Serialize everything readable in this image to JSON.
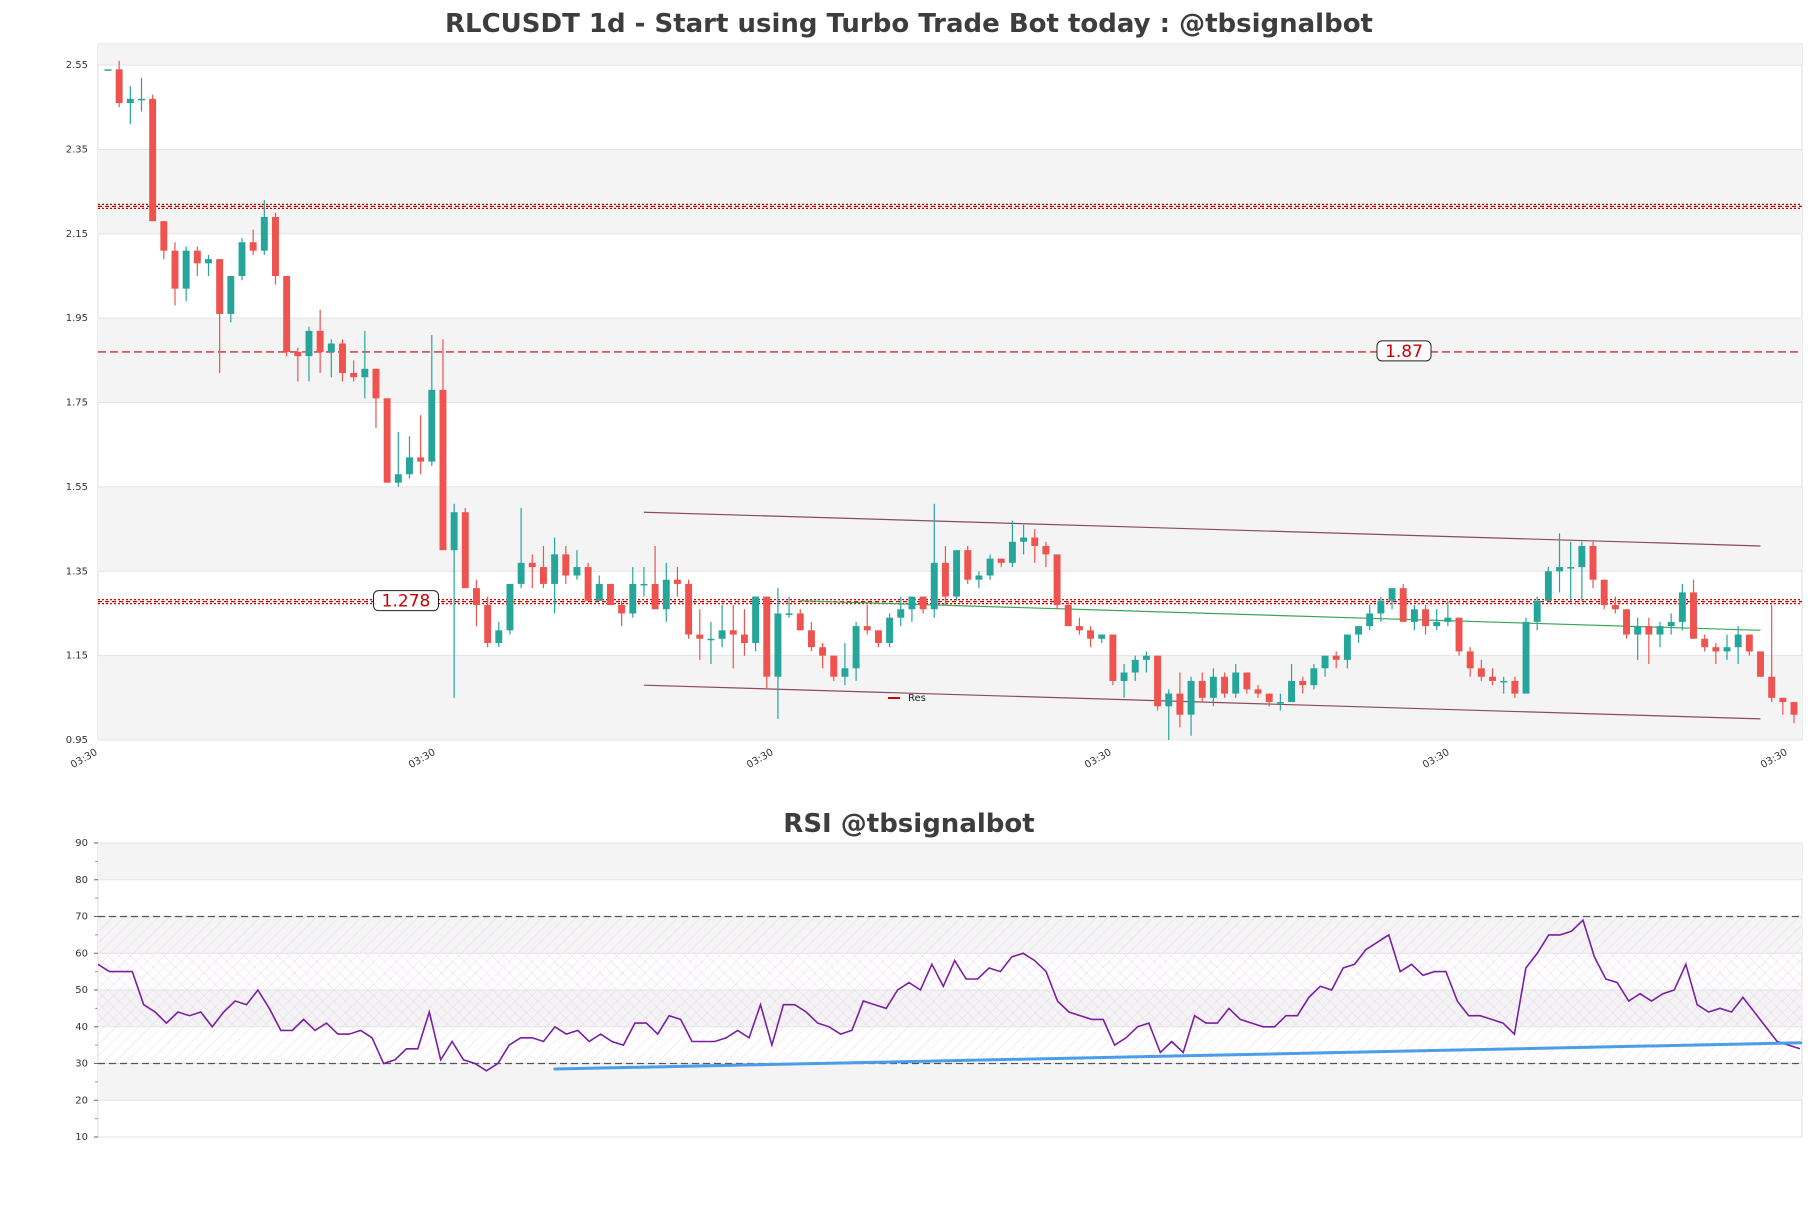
{
  "chart_data": [
    {
      "type": "candlestick",
      "title": "RLCUSDT 1d - Start using Turbo Trade Bot today : @tbsignalbot",
      "ylim": [
        0.95,
        2.6
      ],
      "yticks": [
        "0.95",
        "1.15",
        "1.35",
        "1.55",
        "1.75",
        "1.95",
        "2.15",
        "2.35",
        "2.55"
      ],
      "xtick_labels": [
        "03:30",
        "03:30",
        "03:30",
        "03:30",
        "03:30",
        "03:30"
      ],
      "grid": true,
      "legend": {
        "placement": "bottom-center",
        "entries": [
          "Res"
        ]
      },
      "levels": [
        {
          "value": 2.215,
          "style": "dotted-band",
          "label": ""
        },
        {
          "value": 1.87,
          "style": "dashed",
          "label": "1.87"
        },
        {
          "value": 1.278,
          "style": "dotted-band",
          "label": "1.278"
        }
      ],
      "channel_upper": {
        "from": [
          48,
          1.49
        ],
        "to": [
          148,
          1.41
        ]
      },
      "channel_lower": {
        "from": [
          48,
          1.08
        ],
        "to": [
          148,
          1.0
        ]
      },
      "trend_mid": {
        "from": [
          62,
          1.28
        ],
        "to": [
          148,
          1.21
        ]
      },
      "colors": {
        "up": "#26a69a",
        "down": "#ef5350",
        "level": "#cc0000",
        "channel": "#8b4a5e",
        "mid": "#3aa655"
      },
      "ohlc": [
        [
          2.54,
          2.54,
          2.54,
          2.54
        ],
        [
          2.54,
          2.56,
          2.45,
          2.46
        ],
        [
          2.46,
          2.5,
          2.41,
          2.47
        ],
        [
          2.47,
          2.52,
          2.44,
          2.47
        ],
        [
          2.47,
          2.48,
          2.18,
          2.18
        ],
        [
          2.18,
          2.18,
          2.09,
          2.11
        ],
        [
          2.11,
          2.13,
          1.98,
          2.02
        ],
        [
          2.02,
          2.12,
          1.99,
          2.11
        ],
        [
          2.11,
          2.12,
          2.05,
          2.08
        ],
        [
          2.08,
          2.1,
          2.05,
          2.09
        ],
        [
          2.09,
          2.09,
          1.82,
          1.96
        ],
        [
          1.96,
          2.05,
          1.94,
          2.05
        ],
        [
          2.05,
          2.14,
          2.04,
          2.13
        ],
        [
          2.13,
          2.16,
          2.1,
          2.11
        ],
        [
          2.11,
          2.23,
          2.1,
          2.19
        ],
        [
          2.19,
          2.2,
          2.03,
          2.05
        ],
        [
          2.05,
          2.05,
          1.86,
          1.87
        ],
        [
          1.87,
          1.88,
          1.8,
          1.86
        ],
        [
          1.86,
          1.93,
          1.8,
          1.92
        ],
        [
          1.92,
          1.97,
          1.82,
          1.87
        ],
        [
          1.87,
          1.9,
          1.81,
          1.89
        ],
        [
          1.89,
          1.9,
          1.8,
          1.82
        ],
        [
          1.82,
          1.85,
          1.8,
          1.81
        ],
        [
          1.81,
          1.92,
          1.76,
          1.83
        ],
        [
          1.83,
          1.83,
          1.69,
          1.76
        ],
        [
          1.76,
          1.76,
          1.56,
          1.56
        ],
        [
          1.56,
          1.68,
          1.55,
          1.58
        ],
        [
          1.58,
          1.67,
          1.57,
          1.62
        ],
        [
          1.62,
          1.72,
          1.58,
          1.61
        ],
        [
          1.61,
          1.91,
          1.6,
          1.78
        ],
        [
          1.78,
          1.9,
          1.4,
          1.4
        ],
        [
          1.4,
          1.51,
          1.05,
          1.49
        ],
        [
          1.49,
          1.5,
          1.31,
          1.31
        ],
        [
          1.31,
          1.33,
          1.22,
          1.27
        ],
        [
          1.27,
          1.29,
          1.17,
          1.18
        ],
        [
          1.18,
          1.23,
          1.17,
          1.21
        ],
        [
          1.21,
          1.32,
          1.2,
          1.32
        ],
        [
          1.32,
          1.5,
          1.31,
          1.37
        ],
        [
          1.37,
          1.39,
          1.31,
          1.36
        ],
        [
          1.36,
          1.41,
          1.31,
          1.32
        ],
        [
          1.32,
          1.43,
          1.25,
          1.39
        ],
        [
          1.39,
          1.41,
          1.32,
          1.34
        ],
        [
          1.34,
          1.4,
          1.33,
          1.36
        ],
        [
          1.36,
          1.37,
          1.28,
          1.28
        ],
        [
          1.28,
          1.34,
          1.28,
          1.32
        ],
        [
          1.32,
          1.32,
          1.27,
          1.27
        ],
        [
          1.27,
          1.28,
          1.22,
          1.25
        ],
        [
          1.25,
          1.36,
          1.24,
          1.32
        ],
        [
          1.32,
          1.36,
          1.29,
          1.32
        ],
        [
          1.32,
          1.41,
          1.26,
          1.26
        ],
        [
          1.26,
          1.37,
          1.23,
          1.33
        ],
        [
          1.33,
          1.36,
          1.29,
          1.32
        ],
        [
          1.32,
          1.33,
          1.19,
          1.2
        ],
        [
          1.2,
          1.26,
          1.14,
          1.19
        ],
        [
          1.19,
          1.23,
          1.13,
          1.19
        ],
        [
          1.19,
          1.27,
          1.17,
          1.21
        ],
        [
          1.21,
          1.27,
          1.12,
          1.2
        ],
        [
          1.2,
          1.26,
          1.15,
          1.18
        ],
        [
          1.18,
          1.29,
          1.16,
          1.29
        ],
        [
          1.29,
          1.29,
          1.07,
          1.1
        ],
        [
          1.1,
          1.31,
          1.0,
          1.25
        ],
        [
          1.25,
          1.29,
          1.24,
          1.25
        ],
        [
          1.25,
          1.26,
          1.21,
          1.21
        ],
        [
          1.21,
          1.23,
          1.16,
          1.17
        ],
        [
          1.17,
          1.18,
          1.12,
          1.15
        ],
        [
          1.15,
          1.15,
          1.09,
          1.1
        ],
        [
          1.1,
          1.18,
          1.08,
          1.12
        ],
        [
          1.12,
          1.23,
          1.09,
          1.22
        ],
        [
          1.22,
          1.27,
          1.2,
          1.21
        ],
        [
          1.21,
          1.21,
          1.17,
          1.18
        ],
        [
          1.18,
          1.25,
          1.17,
          1.24
        ],
        [
          1.24,
          1.29,
          1.22,
          1.26
        ],
        [
          1.26,
          1.29,
          1.23,
          1.29
        ],
        [
          1.29,
          1.29,
          1.25,
          1.26
        ],
        [
          1.26,
          1.51,
          1.24,
          1.37
        ],
        [
          1.37,
          1.41,
          1.27,
          1.29
        ],
        [
          1.29,
          1.4,
          1.28,
          1.4
        ],
        [
          1.4,
          1.41,
          1.32,
          1.33
        ],
        [
          1.33,
          1.35,
          1.31,
          1.34
        ],
        [
          1.34,
          1.39,
          1.33,
          1.38
        ],
        [
          1.38,
          1.38,
          1.36,
          1.37
        ],
        [
          1.37,
          1.47,
          1.36,
          1.42
        ],
        [
          1.42,
          1.46,
          1.39,
          1.43
        ],
        [
          1.43,
          1.45,
          1.37,
          1.41
        ],
        [
          1.41,
          1.42,
          1.36,
          1.39
        ],
        [
          1.39,
          1.39,
          1.26,
          1.27
        ],
        [
          1.27,
          1.28,
          1.23,
          1.22
        ],
        [
          1.22,
          1.24,
          1.2,
          1.21
        ],
        [
          1.21,
          1.22,
          1.17,
          1.19
        ],
        [
          1.19,
          1.2,
          1.18,
          1.2
        ],
        [
          1.2,
          1.2,
          1.08,
          1.09
        ],
        [
          1.09,
          1.13,
          1.05,
          1.11
        ],
        [
          1.11,
          1.15,
          1.09,
          1.14
        ],
        [
          1.14,
          1.16,
          1.11,
          1.15
        ],
        [
          1.15,
          1.15,
          1.02,
          1.03
        ],
        [
          1.03,
          1.07,
          0.95,
          1.06
        ],
        [
          1.06,
          1.11,
          0.98,
          1.01
        ],
        [
          1.01,
          1.1,
          0.96,
          1.09
        ],
        [
          1.09,
          1.11,
          1.04,
          1.05
        ],
        [
          1.05,
          1.12,
          1.03,
          1.1
        ],
        [
          1.1,
          1.11,
          1.05,
          1.06
        ],
        [
          1.06,
          1.13,
          1.05,
          1.11
        ],
        [
          1.11,
          1.11,
          1.06,
          1.07
        ],
        [
          1.07,
          1.08,
          1.05,
          1.06
        ],
        [
          1.06,
          1.06,
          1.03,
          1.04
        ],
        [
          1.04,
          1.06,
          1.02,
          1.04
        ],
        [
          1.04,
          1.13,
          1.04,
          1.09
        ],
        [
          1.09,
          1.1,
          1.06,
          1.08
        ],
        [
          1.08,
          1.13,
          1.07,
          1.12
        ],
        [
          1.12,
          1.15,
          1.1,
          1.15
        ],
        [
          1.15,
          1.16,
          1.12,
          1.14
        ],
        [
          1.14,
          1.2,
          1.12,
          1.2
        ],
        [
          1.2,
          1.22,
          1.18,
          1.22
        ],
        [
          1.22,
          1.27,
          1.21,
          1.25
        ],
        [
          1.25,
          1.29,
          1.23,
          1.28
        ],
        [
          1.28,
          1.31,
          1.26,
          1.31
        ],
        [
          1.31,
          1.32,
          1.23,
          1.23
        ],
        [
          1.23,
          1.27,
          1.21,
          1.26
        ],
        [
          1.26,
          1.27,
          1.2,
          1.22
        ],
        [
          1.22,
          1.26,
          1.21,
          1.23
        ],
        [
          1.23,
          1.28,
          1.22,
          1.24
        ],
        [
          1.24,
          1.24,
          1.15,
          1.16
        ],
        [
          1.16,
          1.17,
          1.1,
          1.12
        ],
        [
          1.12,
          1.14,
          1.09,
          1.1
        ],
        [
          1.1,
          1.12,
          1.08,
          1.09
        ],
        [
          1.09,
          1.1,
          1.06,
          1.09
        ],
        [
          1.09,
          1.1,
          1.05,
          1.06
        ],
        [
          1.06,
          1.24,
          1.06,
          1.23
        ],
        [
          1.23,
          1.29,
          1.21,
          1.28
        ],
        [
          1.28,
          1.36,
          1.28,
          1.35
        ],
        [
          1.35,
          1.44,
          1.3,
          1.36
        ],
        [
          1.36,
          1.42,
          1.28,
          1.36
        ],
        [
          1.36,
          1.42,
          1.28,
          1.41
        ],
        [
          1.41,
          1.42,
          1.31,
          1.33
        ],
        [
          1.33,
          1.33,
          1.26,
          1.27
        ],
        [
          1.27,
          1.29,
          1.25,
          1.26
        ],
        [
          1.26,
          1.26,
          1.19,
          1.2
        ],
        [
          1.2,
          1.24,
          1.14,
          1.22
        ],
        [
          1.22,
          1.24,
          1.13,
          1.2
        ],
        [
          1.2,
          1.23,
          1.17,
          1.22
        ],
        [
          1.22,
          1.25,
          1.2,
          1.23
        ],
        [
          1.23,
          1.32,
          1.21,
          1.3
        ],
        [
          1.3,
          1.33,
          1.19,
          1.19
        ],
        [
          1.19,
          1.2,
          1.16,
          1.17
        ],
        [
          1.17,
          1.18,
          1.13,
          1.16
        ],
        [
          1.16,
          1.2,
          1.14,
          1.17
        ],
        [
          1.17,
          1.22,
          1.13,
          1.2
        ],
        [
          1.2,
          1.2,
          1.15,
          1.16
        ],
        [
          1.16,
          1.16,
          1.1,
          1.1
        ],
        [
          1.1,
          1.27,
          1.04,
          1.05
        ],
        [
          1.05,
          1.05,
          1.01,
          1.04
        ],
        [
          1.04,
          1.04,
          0.99,
          1.01
        ]
      ]
    },
    {
      "type": "line",
      "title": "RSI @tbsignalbot",
      "ylim": [
        10,
        90
      ],
      "yticks": [
        "10",
        "20",
        "30",
        "40",
        "50",
        "60",
        "70",
        "80",
        "90"
      ],
      "grid": true,
      "hlines": [
        30,
        70
      ],
      "bands": [
        [
          30,
          70
        ],
        [
          40,
          60
        ]
      ],
      "trendline": {
        "from": [
          40,
          28.5
        ],
        "to": [
          170,
          37
        ]
      },
      "colors": {
        "rsi": "#7b1fa2",
        "trend": "#4a9de8",
        "hline": "#555555"
      },
      "values": [
        57,
        55,
        55,
        55,
        46,
        44,
        41,
        44,
        43,
        44,
        40,
        44,
        47,
        46,
        50,
        45,
        39,
        39,
        42,
        39,
        41,
        38,
        38,
        39,
        37,
        30,
        31,
        34,
        34,
        44,
        31,
        36,
        31,
        30,
        28,
        30,
        35,
        37,
        37,
        36,
        40,
        38,
        39,
        36,
        38,
        36,
        35,
        41,
        41,
        38,
        43,
        42,
        36,
        36,
        36,
        37,
        39,
        37,
        46,
        35,
        46,
        46,
        44,
        41,
        40,
        38,
        39,
        47,
        46,
        45,
        50,
        52,
        50,
        57,
        51,
        58,
        53,
        53,
        56,
        55,
        59,
        60,
        58,
        55,
        47,
        44,
        43,
        42,
        42,
        35,
        37,
        40,
        41,
        33,
        36,
        33,
        43,
        41,
        41,
        45,
        42,
        41,
        40,
        40,
        43,
        43,
        48,
        51,
        50,
        56,
        57,
        61,
        63,
        65,
        55,
        57,
        54,
        55,
        55,
        47,
        43,
        43,
        42,
        41,
        38,
        56,
        60,
        65,
        65,
        66,
        69,
        59,
        53,
        52,
        47,
        49,
        47,
        49,
        50,
        57,
        46,
        44,
        45,
        44,
        48,
        44,
        40,
        36,
        35,
        34
      ]
    }
  ]
}
